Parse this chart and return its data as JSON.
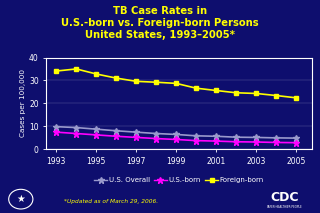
{
  "title_line1": "TB Case Rates in",
  "title_line2": "U.S.-born vs. Foreign-born Persons",
  "title_line3": "United States, 1993–2005*",
  "years": [
    1993,
    1994,
    1995,
    1996,
    1997,
    1998,
    1999,
    2000,
    2001,
    2002,
    2003,
    2004,
    2005
  ],
  "us_overall": [
    9.8,
    9.4,
    8.7,
    8.0,
    7.4,
    6.8,
    6.4,
    5.8,
    5.6,
    5.2,
    5.1,
    4.9,
    4.8
  ],
  "us_born": [
    7.4,
    6.8,
    6.2,
    5.6,
    5.1,
    4.6,
    4.2,
    3.7,
    3.5,
    3.2,
    3.1,
    2.9,
    2.8
  ],
  "foreign_born": [
    34.1,
    35.0,
    32.8,
    31.0,
    29.6,
    29.2,
    28.7,
    26.6,
    25.6,
    24.6,
    24.3,
    23.4,
    22.4
  ],
  "background_color": "#0E0E6E",
  "plot_bg_color": "#0E0E6E",
  "title_color": "#FFFF00",
  "axis_color": "#FFFFFF",
  "tick_color": "#FFFFFF",
  "ylabel": "Cases per 100,000",
  "ylim": [
    0,
    40
  ],
  "yticks": [
    0,
    10,
    20,
    30,
    40
  ],
  "xticks": [
    1993,
    1995,
    1997,
    1999,
    2001,
    2003,
    2005
  ],
  "line_overall_color": "#9999CC",
  "line_born_color": "#FF00FF",
  "line_foreign_color": "#FFFF00",
  "footer_text": "*Updated as of March 29, 2006.",
  "footer_color": "#FFFF00",
  "legend_labels": [
    "U.S. Overall",
    "U.S.-born",
    "Foreign-born"
  ],
  "cdc_box_color": "#4169B0",
  "cdc_text_color": "#FFFFFF"
}
